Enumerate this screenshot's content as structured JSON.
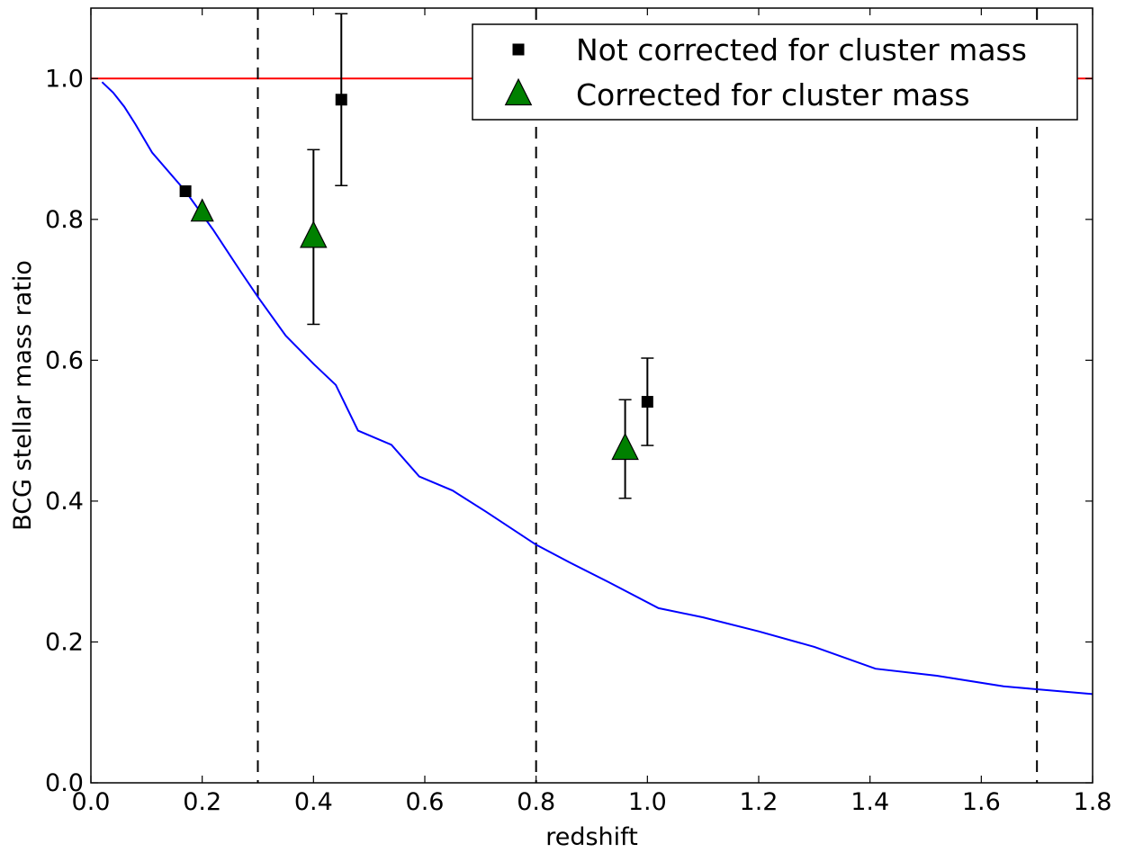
{
  "chart_data": {
    "type": "scatter",
    "title": "",
    "xlabel": "redshift",
    "ylabel": "BCG stellar mass ratio",
    "xlim": [
      0.0,
      1.8
    ],
    "ylim": [
      0.0,
      1.1
    ],
    "x_ticks": [
      0.0,
      0.2,
      0.4,
      0.6,
      0.8,
      1.0,
      1.2,
      1.4,
      1.6,
      1.8
    ],
    "x_tick_labels": [
      "0.0",
      "0.2",
      "0.4",
      "0.6",
      "0.8",
      "1.0",
      "1.2",
      "1.4",
      "1.6",
      "1.8"
    ],
    "y_ticks": [
      0.0,
      0.2,
      0.4,
      0.6,
      0.8,
      1.0
    ],
    "y_tick_labels": [
      "0.0",
      "0.2",
      "0.4",
      "0.6",
      "0.8",
      "1.0"
    ],
    "grid": false,
    "legend": {
      "placement": "top-right",
      "entries": [
        "Not corrected for cluster mass",
        "Corrected for cluster mass"
      ]
    },
    "series": [
      {
        "name": "Not corrected for cluster mass",
        "marker": "square",
        "color": "#000000",
        "points": [
          {
            "x": 0.17,
            "y": 0.84,
            "ylo": 0.84,
            "yhi": 0.84
          },
          {
            "x": 0.45,
            "y": 0.97,
            "ylo": 0.848,
            "yhi": 1.092
          },
          {
            "x": 1.0,
            "y": 0.541,
            "ylo": 0.479,
            "yhi": 0.603
          }
        ]
      },
      {
        "name": "Corrected for cluster mass",
        "marker": "triangle",
        "color": "#008000",
        "points": [
          {
            "x": 0.2,
            "y": 0.81,
            "ylo": 0.81,
            "yhi": 0.81
          },
          {
            "x": 0.4,
            "y": 0.775,
            "ylo": 0.651,
            "yhi": 0.899
          },
          {
            "x": 0.96,
            "y": 0.474,
            "ylo": 0.404,
            "yhi": 0.544
          }
        ]
      }
    ],
    "curve": {
      "color": "#0000ff",
      "x": [
        0.02,
        0.04,
        0.06,
        0.08,
        0.11,
        0.17,
        0.22,
        0.27,
        0.3,
        0.35,
        0.4,
        0.44,
        0.48,
        0.54,
        0.59,
        0.65,
        0.71,
        0.8,
        0.86,
        0.93,
        1.02,
        1.1,
        1.2,
        1.3,
        1.41,
        1.52,
        1.64,
        1.8
      ],
      "y": [
        0.995,
        0.98,
        0.96,
        0.935,
        0.895,
        0.84,
        0.785,
        0.725,
        0.69,
        0.635,
        0.595,
        0.565,
        0.5,
        0.48,
        0.435,
        0.415,
        0.385,
        0.338,
        0.313,
        0.285,
        0.248,
        0.235,
        0.215,
        0.193,
        0.162,
        0.152,
        0.137,
        0.126
      ]
    },
    "reference_line": {
      "y": 1.0,
      "color": "#ff0000"
    },
    "vertical_lines": {
      "x": [
        0.3,
        0.8,
        1.7
      ],
      "style": "dashed",
      "color": "#000000"
    }
  }
}
